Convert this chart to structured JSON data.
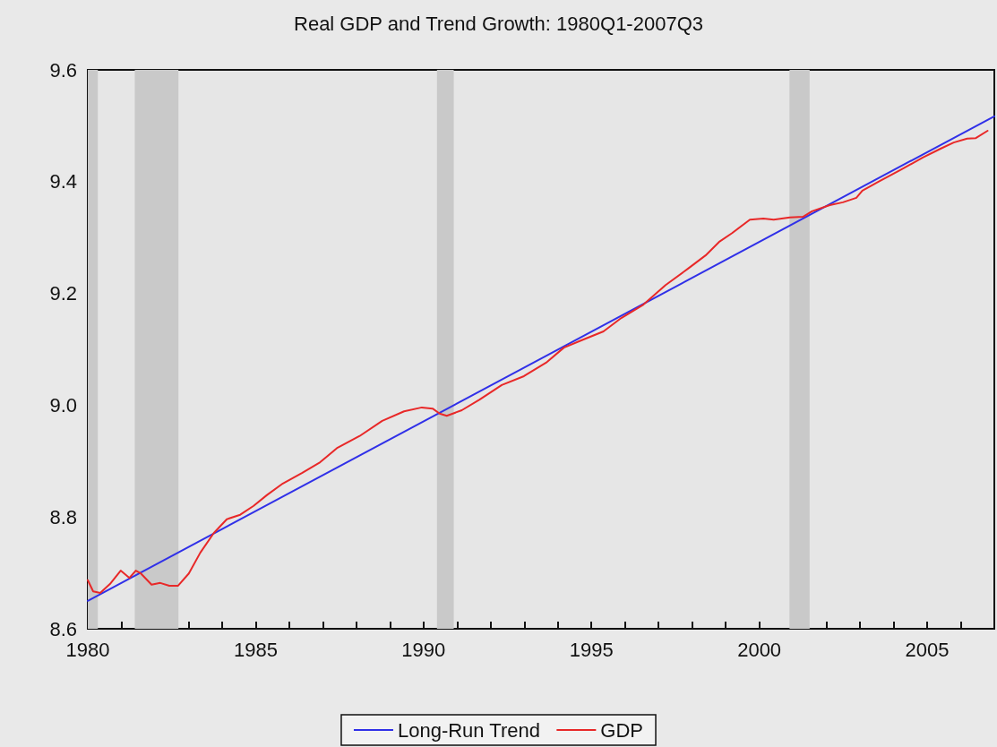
{
  "chart_data": {
    "type": "line",
    "title": "Real GDP and Trend Growth: 1980Q1-2007Q3",
    "xlim": [
      1980,
      2007
    ],
    "ylim": [
      8.6,
      9.6
    ],
    "xticks": [
      1980,
      {
        "value": 1981,
        "label": null
      },
      {
        "value": 1982,
        "label": null
      },
      {
        "value": 1983,
        "label": null
      },
      {
        "value": 1984,
        "label": null
      },
      1985,
      {
        "value": 1986,
        "label": null
      },
      {
        "value": 1987,
        "label": null
      },
      {
        "value": 1988,
        "label": null
      },
      {
        "value": 1989,
        "label": null
      },
      1990,
      {
        "value": 1991,
        "label": null
      },
      {
        "value": 1992,
        "label": null
      },
      {
        "value": 1993,
        "label": null
      },
      {
        "value": 1994,
        "label": null
      },
      1995,
      {
        "value": 1996,
        "label": null
      },
      {
        "value": 1997,
        "label": null
      },
      {
        "value": 1998,
        "label": null
      },
      {
        "value": 1999,
        "label": null
      },
      2000,
      {
        "value": 2001,
        "label": null
      },
      {
        "value": 2002,
        "label": null
      },
      {
        "value": 2003,
        "label": null
      },
      {
        "value": 2004,
        "label": null
      },
      2005,
      {
        "value": 2006,
        "label": null
      },
      {
        "value": 2007,
        "label": null
      }
    ],
    "yticks": [
      8.6,
      8.8,
      {
        "value": 9,
        "label": "9.0"
      },
      9.2,
      9.4,
      9.6
    ],
    "grid": false,
    "legend": "bottom",
    "marker": "none",
    "line_style": "solid",
    "bands": [
      {
        "axis": "x",
        "from": 1980,
        "to": 1980.3,
        "color": "#c9c9c9"
      },
      {
        "axis": "x",
        "from": 1981.4,
        "to": 1982.7,
        "color": "#c9c9c9"
      },
      {
        "axis": "x",
        "from": 1990.4,
        "to": 1990.9,
        "color": "#c9c9c9"
      },
      {
        "axis": "x",
        "from": 2000.9,
        "to": 2001.5,
        "color": "#c9c9c9"
      }
    ],
    "series": [
      {
        "name": "Long-Run Trend",
        "color": "#3030e8",
        "x": [
          1980,
          2007
        ],
        "values": [
          8.65,
          9.517
        ]
      },
      {
        "name": "GDP",
        "color": "#e82828",
        "x": [
          1980,
          1980.16,
          1980.37,
          1980.66,
          1980.98,
          1981.24,
          1981.43,
          1981.58,
          1981.9,
          1982.16,
          1982.43,
          1982.69,
          1983.01,
          1983.35,
          1983.75,
          1984.14,
          1984.54,
          1984.94,
          1985.33,
          1985.81,
          1986.39,
          1986.92,
          1987.44,
          1988.1,
          1988.77,
          1989.42,
          1989.95,
          1990.27,
          1990.48,
          1990.69,
          1991.14,
          1991.67,
          1992.33,
          1992.99,
          1993.65,
          1994.18,
          1994.7,
          1995.36,
          1995.89,
          1996.55,
          1997.21,
          1997.87,
          1998.4,
          1998.8,
          1999.19,
          1999.72,
          2000.12,
          2000.43,
          2000.91,
          2001.3,
          2001.57,
          2002.1,
          2002.49,
          2002.89,
          2003.07,
          2003.55,
          2004.21,
          2004.87,
          2005.4,
          2005.79,
          2006.19,
          2006.45,
          2006.8
        ],
        "values": [
          8.687,
          8.667,
          8.664,
          8.68,
          8.704,
          8.691,
          8.704,
          8.699,
          8.679,
          8.682,
          8.677,
          8.677,
          8.699,
          8.736,
          8.771,
          8.796,
          8.804,
          8.82,
          8.839,
          8.86,
          8.879,
          8.898,
          8.924,
          8.945,
          8.972,
          8.989,
          8.996,
          8.994,
          8.985,
          8.981,
          8.991,
          9.01,
          9.036,
          9.052,
          9.076,
          9.103,
          9.116,
          9.132,
          9.156,
          9.18,
          9.215,
          9.244,
          9.268,
          9.292,
          9.308,
          9.332,
          9.334,
          9.332,
          9.336,
          9.337,
          9.347,
          9.358,
          9.363,
          9.371,
          9.384,
          9.4,
          9.421,
          9.443,
          9.459,
          9.47,
          9.477,
          9.478,
          9.491
        ]
      }
    ]
  }
}
